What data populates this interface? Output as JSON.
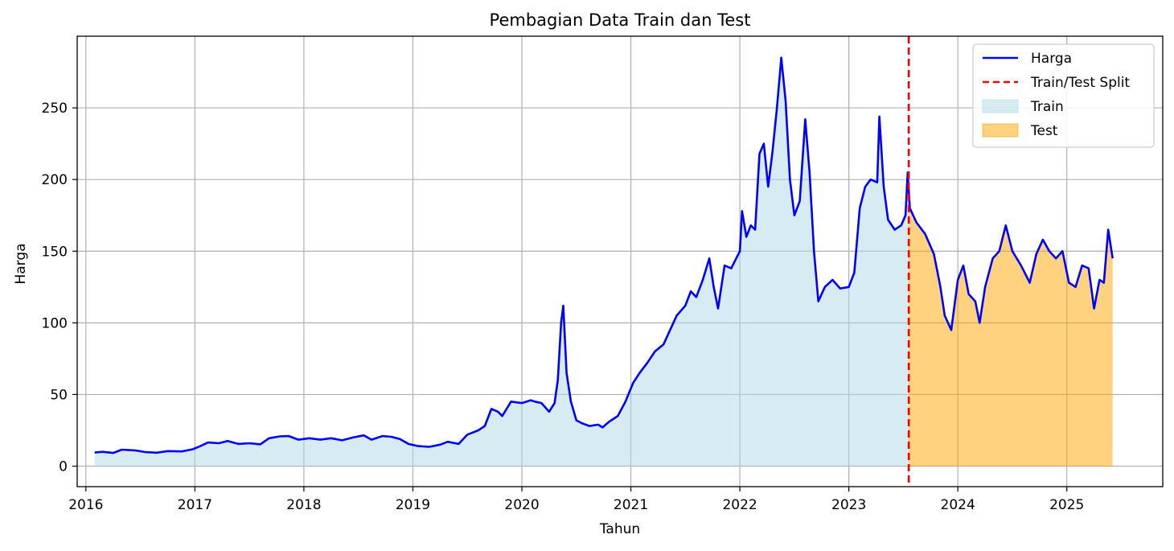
{
  "chart_data": {
    "type": "area",
    "title": "Pembagian Data Train dan Test",
    "xlabel": "Tahun",
    "ylabel": "Harga",
    "xlim": [
      2015.92,
      2025.88
    ],
    "ylim": [
      -14.3,
      300
    ],
    "x_ticks": [
      "2016",
      "2017",
      "2018",
      "2019",
      "2020",
      "2021",
      "2022",
      "2023",
      "2024",
      "2025"
    ],
    "y_ticks": [
      0,
      50,
      100,
      150,
      200,
      250
    ],
    "grid": true,
    "legend_position": "top-right",
    "split_x": 2023.55,
    "series": [
      {
        "name": "Harga",
        "style": "line",
        "color": "#0000ff",
        "points": [
          [
            2016.08,
            9.5
          ],
          [
            2016.15,
            10.0
          ],
          [
            2016.25,
            9.2
          ],
          [
            2016.33,
            11.5
          ],
          [
            2016.45,
            11.0
          ],
          [
            2016.55,
            9.8
          ],
          [
            2016.65,
            9.4
          ],
          [
            2016.75,
            10.5
          ],
          [
            2016.88,
            10.3
          ],
          [
            2016.98,
            11.8
          ],
          [
            2017.05,
            14.0
          ],
          [
            2017.12,
            16.5
          ],
          [
            2017.22,
            16.0
          ],
          [
            2017.3,
            17.5
          ],
          [
            2017.4,
            15.5
          ],
          [
            2017.5,
            16.0
          ],
          [
            2017.6,
            15.2
          ],
          [
            2017.68,
            19.5
          ],
          [
            2017.78,
            20.8
          ],
          [
            2017.86,
            21.0
          ],
          [
            2017.95,
            18.5
          ],
          [
            2018.05,
            19.5
          ],
          [
            2018.15,
            18.5
          ],
          [
            2018.25,
            19.5
          ],
          [
            2018.35,
            18.0
          ],
          [
            2018.45,
            20.0
          ],
          [
            2018.55,
            21.5
          ],
          [
            2018.62,
            18.5
          ],
          [
            2018.72,
            21.0
          ],
          [
            2018.8,
            20.5
          ],
          [
            2018.88,
            19.0
          ],
          [
            2018.96,
            15.5
          ],
          [
            2019.05,
            14.0
          ],
          [
            2019.15,
            13.5
          ],
          [
            2019.25,
            15.0
          ],
          [
            2019.32,
            17.0
          ],
          [
            2019.42,
            15.5
          ],
          [
            2019.5,
            22.0
          ],
          [
            2019.6,
            25.0
          ],
          [
            2019.66,
            28.0
          ],
          [
            2019.72,
            40.0
          ],
          [
            2019.78,
            38.0
          ],
          [
            2019.82,
            35.0
          ],
          [
            2019.9,
            45.0
          ],
          [
            2020.0,
            44.0
          ],
          [
            2020.08,
            46.0
          ],
          [
            2020.12,
            45.0
          ],
          [
            2020.18,
            44.0
          ],
          [
            2020.25,
            38.0
          ],
          [
            2020.3,
            44.0
          ],
          [
            2020.33,
            60.0
          ],
          [
            2020.36,
            100.0
          ],
          [
            2020.38,
            112.0
          ],
          [
            2020.41,
            65.0
          ],
          [
            2020.45,
            45.0
          ],
          [
            2020.5,
            32.0
          ],
          [
            2020.55,
            30.0
          ],
          [
            2020.62,
            28.0
          ],
          [
            2020.7,
            29.0
          ],
          [
            2020.74,
            27.0
          ],
          [
            2020.8,
            31.0
          ],
          [
            2020.88,
            35.0
          ],
          [
            2020.95,
            45.0
          ],
          [
            2021.02,
            58.0
          ],
          [
            2021.08,
            65.0
          ],
          [
            2021.15,
            72.0
          ],
          [
            2021.22,
            80.0
          ],
          [
            2021.3,
            85.0
          ],
          [
            2021.36,
            95.0
          ],
          [
            2021.42,
            105.0
          ],
          [
            2021.5,
            112.0
          ],
          [
            2021.55,
            122.0
          ],
          [
            2021.6,
            118.0
          ],
          [
            2021.66,
            130.0
          ],
          [
            2021.72,
            145.0
          ],
          [
            2021.76,
            125.0
          ],
          [
            2021.8,
            110.0
          ],
          [
            2021.86,
            140.0
          ],
          [
            2021.92,
            138.0
          ],
          [
            2022.0,
            150.0
          ],
          [
            2022.02,
            178.0
          ],
          [
            2022.06,
            160.0
          ],
          [
            2022.1,
            168.0
          ],
          [
            2022.14,
            165.0
          ],
          [
            2022.18,
            218.0
          ],
          [
            2022.22,
            225.0
          ],
          [
            2022.26,
            195.0
          ],
          [
            2022.3,
            220.0
          ],
          [
            2022.34,
            250.0
          ],
          [
            2022.38,
            285.0
          ],
          [
            2022.42,
            255.0
          ],
          [
            2022.46,
            200.0
          ],
          [
            2022.5,
            175.0
          ],
          [
            2022.55,
            185.0
          ],
          [
            2022.6,
            242.0
          ],
          [
            2022.64,
            205.0
          ],
          [
            2022.68,
            150.0
          ],
          [
            2022.72,
            115.0
          ],
          [
            2022.78,
            125.0
          ],
          [
            2022.85,
            130.0
          ],
          [
            2022.92,
            124.0
          ],
          [
            2023.0,
            125.0
          ],
          [
            2023.05,
            135.0
          ],
          [
            2023.1,
            180.0
          ],
          [
            2023.15,
            195.0
          ],
          [
            2023.2,
            200.0
          ],
          [
            2023.26,
            198.0
          ],
          [
            2023.28,
            244.0
          ],
          [
            2023.32,
            195.0
          ],
          [
            2023.36,
            172.0
          ],
          [
            2023.42,
            165.0
          ],
          [
            2023.48,
            168.0
          ],
          [
            2023.52,
            175.0
          ],
          [
            2023.54,
            205.0
          ],
          [
            2023.56,
            180.0
          ],
          [
            2023.62,
            170.0
          ],
          [
            2023.7,
            162.0
          ],
          [
            2023.78,
            148.0
          ],
          [
            2023.84,
            125.0
          ],
          [
            2023.88,
            105.0
          ],
          [
            2023.94,
            95.0
          ],
          [
            2024.0,
            130.0
          ],
          [
            2024.05,
            140.0
          ],
          [
            2024.1,
            120.0
          ],
          [
            2024.16,
            115.0
          ],
          [
            2024.2,
            100.0
          ],
          [
            2024.25,
            125.0
          ],
          [
            2024.32,
            145.0
          ],
          [
            2024.38,
            150.0
          ],
          [
            2024.44,
            168.0
          ],
          [
            2024.5,
            150.0
          ],
          [
            2024.58,
            140.0
          ],
          [
            2024.66,
            128.0
          ],
          [
            2024.72,
            148.0
          ],
          [
            2024.78,
            158.0
          ],
          [
            2024.84,
            150.0
          ],
          [
            2024.9,
            145.0
          ],
          [
            2024.96,
            150.0
          ],
          [
            2025.02,
            128.0
          ],
          [
            2025.08,
            125.0
          ],
          [
            2025.14,
            140.0
          ],
          [
            2025.2,
            138.0
          ],
          [
            2025.25,
            110.0
          ],
          [
            2025.3,
            130.0
          ],
          [
            2025.34,
            128.0
          ],
          [
            2025.38,
            165.0
          ],
          [
            2025.42,
            145.0
          ]
        ]
      },
      {
        "name": "Train/Test Split",
        "style": "vline",
        "color": "#ff0000"
      },
      {
        "name": "Train",
        "style": "fill",
        "color": "#add8e6",
        "x_range": [
          2016.08,
          2023.55
        ]
      },
      {
        "name": "Test",
        "style": "fill",
        "color": "#ffa500",
        "x_range": [
          2023.55,
          2025.42
        ]
      }
    ]
  }
}
